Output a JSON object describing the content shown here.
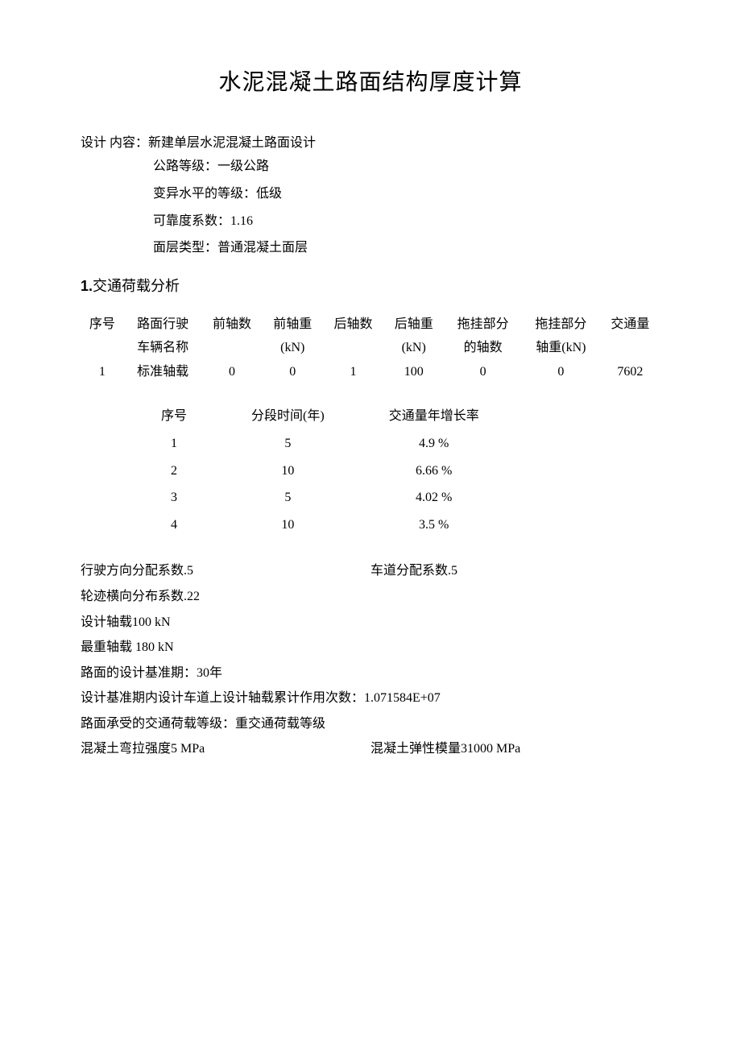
{
  "title": "水泥混凝土路面结构厚度计算",
  "design": {
    "label": "设计 内容：",
    "content": "新建单层水泥混凝土路面设计",
    "lines": {
      "grade": "公路等级：一级公路",
      "variation": "变异水平的等级：低级",
      "reliability": "可靠度系数：1.16",
      "surface": "面层类型：普通混凝土面层"
    }
  },
  "section1": {
    "num": "1.",
    "title": "交通荷载分析"
  },
  "vehicleTable": {
    "headers1": [
      "序号",
      "路面行驶",
      "前轴数",
      "前轴重",
      "后轴数",
      "后轴重",
      "拖挂部分",
      "拖挂部分",
      "交通量"
    ],
    "headers2": [
      "",
      "车辆名称",
      "",
      "(kN)",
      "",
      "(kN)",
      "的轴数",
      "轴重(kN)",
      ""
    ],
    "row": [
      "1",
      "标准轴载",
      "0",
      "0",
      "1",
      "100",
      "0",
      "0",
      "7602"
    ]
  },
  "growthTable": {
    "headers": [
      "序号",
      "分段时间(年)",
      "交通量年增长率"
    ],
    "rows": [
      [
        "1",
        "5",
        "4.9 %"
      ],
      [
        "2",
        "10",
        "6.66 %"
      ],
      [
        "3",
        "5",
        "4.02 %"
      ],
      [
        "4",
        "10",
        "3.5 %"
      ]
    ]
  },
  "params": {
    "direction_coef": "行驶方向分配系数.5",
    "lane_coef": "车道分配系数.5",
    "track_coef": "轮迹横向分布系数.22",
    "design_axle": "设计轴载100 kN",
    "heaviest_axle": "最重轴载  180 kN",
    "design_period": "路面的设计基准期：30年",
    "cumulative": "设计基准期内设计车道上设计轴载累计作用次数：1.071584E+07",
    "traffic_grade": "路面承受的交通荷载等级：重交通荷载等级",
    "flexural": "混凝土弯拉强度5 MPa",
    "elastic": "混凝土弹性模量31000 MPa"
  }
}
